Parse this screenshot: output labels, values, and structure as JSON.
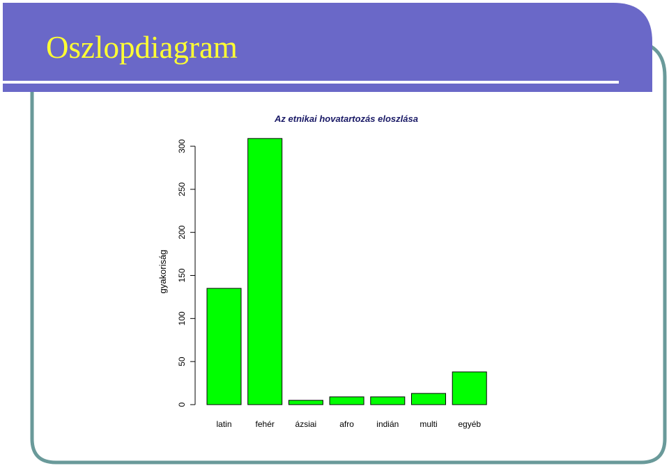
{
  "slide": {
    "title": "Oszlopdiagram",
    "colors": {
      "header": "#6a68c8",
      "frame": "#6a9a9a",
      "title_text": "#ffff33"
    }
  },
  "chart_data": {
    "type": "bar",
    "title": "Az etnikai hovatartozás eloszlása",
    "xlabel": "",
    "ylabel": "gyakoriság",
    "categories": [
      "latin",
      "fehér",
      "ázsiai",
      "afro",
      "indián",
      "multi",
      "egyéb"
    ],
    "values": [
      135,
      309,
      5,
      9,
      9,
      13,
      38
    ],
    "ylim": [
      0,
      300
    ],
    "yticks": [
      "0",
      "50",
      "100",
      "150",
      "200",
      "250",
      "300"
    ],
    "bar_color": "#00ff00",
    "grid": false,
    "legend": "none"
  }
}
